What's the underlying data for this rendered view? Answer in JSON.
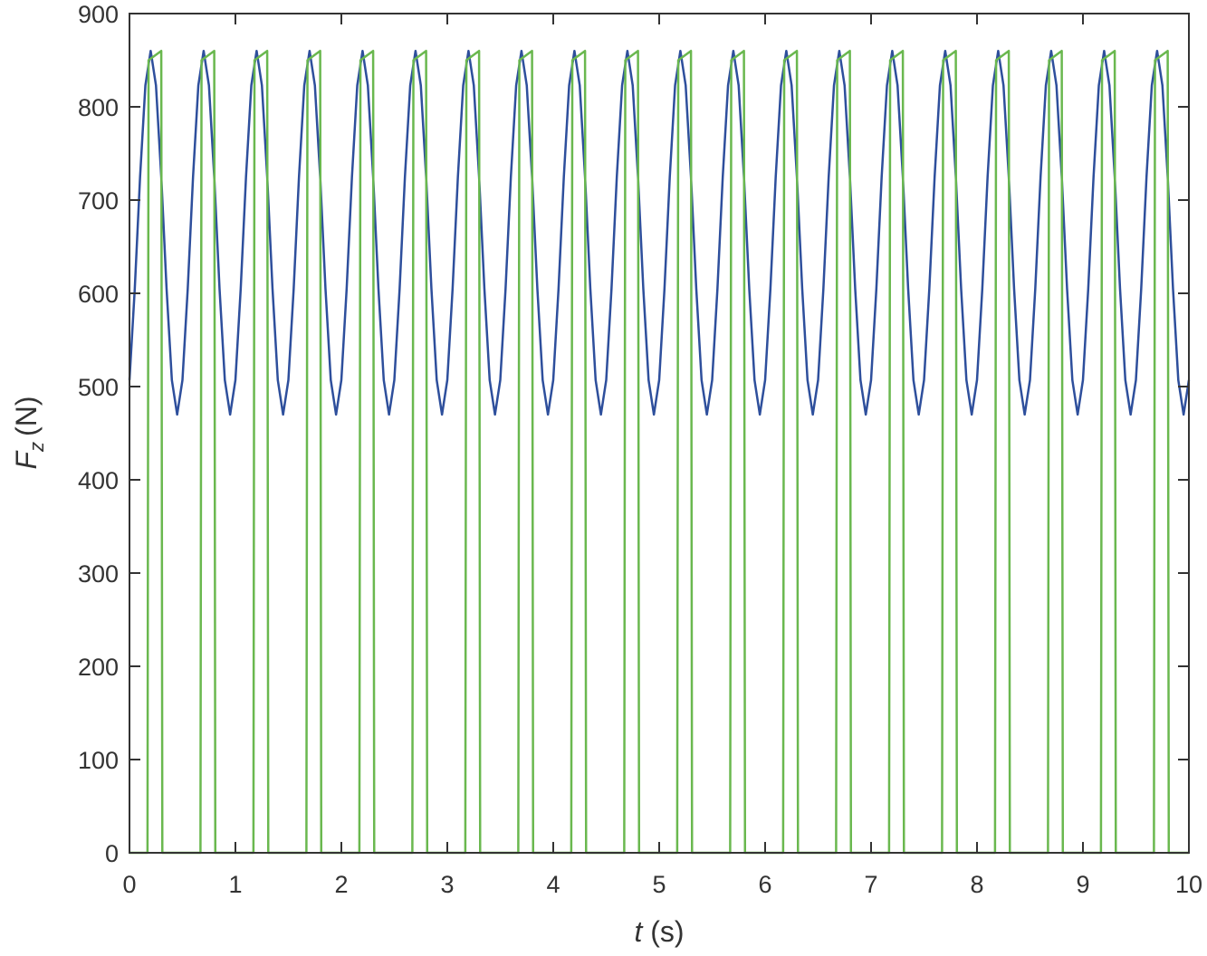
{
  "chart_data": {
    "type": "line",
    "xlabel": {
      "symbol": "t",
      "unit": "(s)"
    },
    "ylabel": {
      "symbol": "F",
      "subscript": "z",
      "unit": "(N)"
    },
    "xlim": [
      0,
      10
    ],
    "xticks": [
      0,
      1,
      2,
      3,
      4,
      5,
      6,
      7,
      8,
      9,
      10
    ],
    "ylim": [
      0,
      900
    ],
    "yticks": [
      0,
      100,
      200,
      300,
      400,
      500,
      600,
      700,
      800,
      900
    ],
    "series": [
      {
        "color": "#2e4f9c",
        "x": [
          0,
          0.05,
          0.1,
          0.15,
          0.2,
          0.25,
          0.3,
          0.35,
          0.4,
          0.45,
          0.5,
          0.55,
          0.6,
          0.65,
          0.7,
          0.75,
          0.8,
          0.85,
          0.9,
          0.95,
          1,
          1.05,
          1.1,
          1.15,
          1.2,
          1.25,
          1.3,
          1.35,
          1.4,
          1.45,
          1.5,
          1.55,
          1.6,
          1.65,
          1.7,
          1.75,
          1.8,
          1.85,
          1.9,
          1.95,
          2,
          2.05,
          2.1,
          2.15,
          2.2,
          2.25,
          2.3,
          2.35,
          2.4,
          2.45,
          2.5,
          2.55,
          2.6,
          2.65,
          2.7,
          2.75,
          2.8,
          2.85,
          2.9,
          2.95,
          3,
          3.05,
          3.1,
          3.15,
          3.2,
          3.25,
          3.3,
          3.35,
          3.4,
          3.45,
          3.5,
          3.55,
          3.6,
          3.65,
          3.7,
          3.75,
          3.8,
          3.85,
          3.9,
          3.95,
          4,
          4.05,
          4.1,
          4.15,
          4.2,
          4.25,
          4.3,
          4.35,
          4.4,
          4.45,
          4.5,
          4.55,
          4.6,
          4.65,
          4.7,
          4.75,
          4.8,
          4.85,
          4.9,
          4.95,
          5,
          5.05,
          5.1,
          5.15,
          5.2,
          5.25,
          5.3,
          5.35,
          5.4,
          5.45,
          5.5,
          5.55,
          5.6,
          5.65,
          5.7,
          5.75,
          5.8,
          5.85,
          5.9,
          5.95,
          6,
          6.05,
          6.1,
          6.15,
          6.2,
          6.25,
          6.3,
          6.35,
          6.4,
          6.45,
          6.5,
          6.55,
          6.6,
          6.65,
          6.7,
          6.75,
          6.8,
          6.85,
          6.9,
          6.95,
          7,
          7.05,
          7.1,
          7.15,
          7.2,
          7.25,
          7.3,
          7.35,
          7.4,
          7.45,
          7.5,
          7.55,
          7.6,
          7.65,
          7.7,
          7.75,
          7.8,
          7.85,
          7.9,
          7.95,
          8,
          8.05,
          8.1,
          8.15,
          8.2,
          8.25,
          8.3,
          8.35,
          8.4,
          8.45,
          8.5,
          8.55,
          8.6,
          8.65,
          8.7,
          8.75,
          8.8,
          8.85,
          8.9,
          8.95,
          9,
          9.05,
          9.1,
          9.15,
          9.2,
          9.25,
          9.3,
          9.35,
          9.4,
          9.45,
          9.5,
          9.55,
          9.6,
          9.65,
          9.7,
          9.75,
          9.8,
          9.85,
          9.9,
          9.95,
          10
        ],
        "values": [
          507,
          605,
          725,
          823,
          860,
          823,
          725,
          605,
          507,
          470,
          507,
          605,
          725,
          823,
          860,
          823,
          725,
          605,
          507,
          470,
          507,
          605,
          725,
          823,
          860,
          823,
          725,
          605,
          507,
          470,
          507,
          605,
          725,
          823,
          860,
          823,
          725,
          605,
          507,
          470,
          507,
          605,
          725,
          823,
          860,
          823,
          725,
          605,
          507,
          470,
          507,
          605,
          725,
          823,
          860,
          823,
          725,
          605,
          507,
          470,
          507,
          605,
          725,
          823,
          860,
          823,
          725,
          605,
          507,
          470,
          507,
          605,
          725,
          823,
          860,
          823,
          725,
          605,
          507,
          470,
          507,
          605,
          725,
          823,
          860,
          823,
          725,
          605,
          507,
          470,
          507,
          605,
          725,
          823,
          860,
          823,
          725,
          605,
          507,
          470,
          507,
          605,
          725,
          823,
          860,
          823,
          725,
          605,
          507,
          470,
          507,
          605,
          725,
          823,
          860,
          823,
          725,
          605,
          507,
          470,
          507,
          605,
          725,
          823,
          860,
          823,
          725,
          605,
          507,
          470,
          507,
          605,
          725,
          823,
          860,
          823,
          725,
          605,
          507,
          470,
          507,
          605,
          725,
          823,
          860,
          823,
          725,
          605,
          507,
          470,
          507,
          605,
          725,
          823,
          860,
          823,
          725,
          605,
          507,
          470,
          507,
          605,
          725,
          823,
          860,
          823,
          725,
          605,
          507,
          470,
          507,
          605,
          725,
          823,
          860,
          823,
          725,
          605,
          507,
          470,
          507,
          605,
          725,
          823,
          860,
          823,
          725,
          605,
          507,
          470,
          507,
          605,
          725,
          823,
          860,
          823,
          725,
          605,
          507,
          470,
          507
        ]
      },
      {
        "color": "#6ab84f",
        "x": [
          0,
          0.17,
          0.18,
          0.3,
          0.31,
          0.67,
          0.68,
          0.8,
          0.81,
          1.17,
          1.18,
          1.3,
          1.31,
          1.67,
          1.68,
          1.8,
          1.81,
          2.17,
          2.18,
          2.3,
          2.31,
          2.67,
          2.68,
          2.8,
          2.81,
          3.17,
          3.18,
          3.3,
          3.31,
          3.67,
          3.68,
          3.8,
          3.81,
          4.17,
          4.18,
          4.3,
          4.31,
          4.67,
          4.68,
          4.8,
          4.81,
          5.17,
          5.18,
          5.3,
          5.31,
          5.67,
          5.68,
          5.8,
          5.81,
          6.17,
          6.18,
          6.3,
          6.31,
          6.67,
          6.68,
          6.8,
          6.81,
          7.17,
          7.18,
          7.3,
          7.31,
          7.67,
          7.68,
          7.8,
          7.81,
          8.17,
          8.18,
          8.3,
          8.31,
          8.67,
          8.68,
          8.8,
          8.81,
          9.17,
          9.18,
          9.3,
          9.31,
          9.67,
          9.68,
          9.8,
          9.81,
          10
        ],
        "values": [
          0,
          0,
          850,
          860,
          0,
          0,
          850,
          860,
          0,
          0,
          850,
          860,
          0,
          0,
          850,
          860,
          0,
          0,
          850,
          860,
          0,
          0,
          850,
          860,
          0,
          0,
          850,
          860,
          0,
          0,
          850,
          860,
          0,
          0,
          850,
          860,
          0,
          0,
          850,
          860,
          0,
          0,
          850,
          860,
          0,
          0,
          850,
          860,
          0,
          0,
          850,
          860,
          0,
          0,
          850,
          860,
          0,
          0,
          850,
          860,
          0,
          0,
          850,
          860,
          0,
          0,
          850,
          860,
          0,
          0,
          850,
          860,
          0,
          0,
          850,
          860,
          0,
          0,
          850,
          860,
          0,
          0
        ]
      }
    ]
  }
}
